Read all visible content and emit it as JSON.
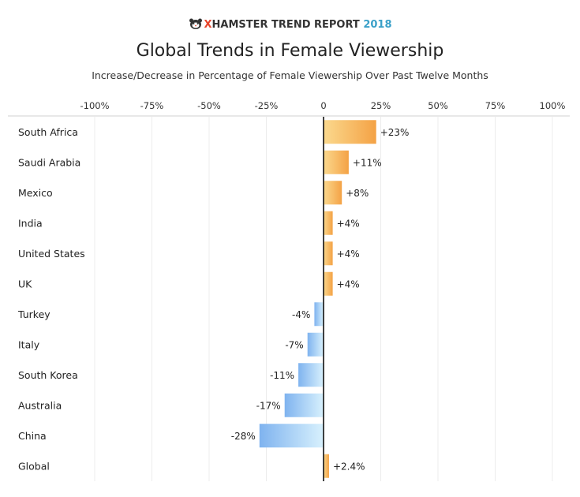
{
  "brand": {
    "prefix": "X",
    "name": "HAMSTER TREND REPORT",
    "year": "2018",
    "logo_icon": "hamster-logo-icon"
  },
  "colors": {
    "positive_dark": "#f4a245",
    "positive_light": "#fbd98e",
    "negative_dark": "#7fb3ef",
    "negative_light": "#d8f1fd",
    "grid": "#ececec",
    "zero_axis": "#111111"
  },
  "chart_data": {
    "type": "bar",
    "orientation": "horizontal",
    "title": "Global Trends in Female Viewership",
    "subtitle": "Increase/Decrease in Percentage of Female Viewership Over Past Twelve Months",
    "categories": [
      "South Africa",
      "Saudi Arabia",
      "Mexico",
      "India",
      "United States",
      "UK",
      "Turkey",
      "Italy",
      "South Korea",
      "Australia",
      "China",
      "Global"
    ],
    "values": [
      23,
      11,
      8,
      4,
      4,
      4,
      -4,
      -7,
      -11,
      -17,
      -28,
      2.4
    ],
    "data_labels": [
      "+23%",
      "+11%",
      "+8%",
      "+4%",
      "+4%",
      "+4%",
      "-4%",
      "-7%",
      "-11%",
      "-17%",
      "-28%",
      "+2.4%"
    ],
    "xlim": [
      -100,
      100
    ],
    "x_ticks": [
      -100,
      -75,
      -50,
      -25,
      0,
      25,
      50,
      75,
      100
    ],
    "x_tick_labels": [
      "-100%",
      "-75%",
      "-50%",
      "-25%",
      "0",
      "25%",
      "50%",
      "75%",
      "100%"
    ],
    "axis_position": "top",
    "grid": true,
    "legend": "none"
  }
}
